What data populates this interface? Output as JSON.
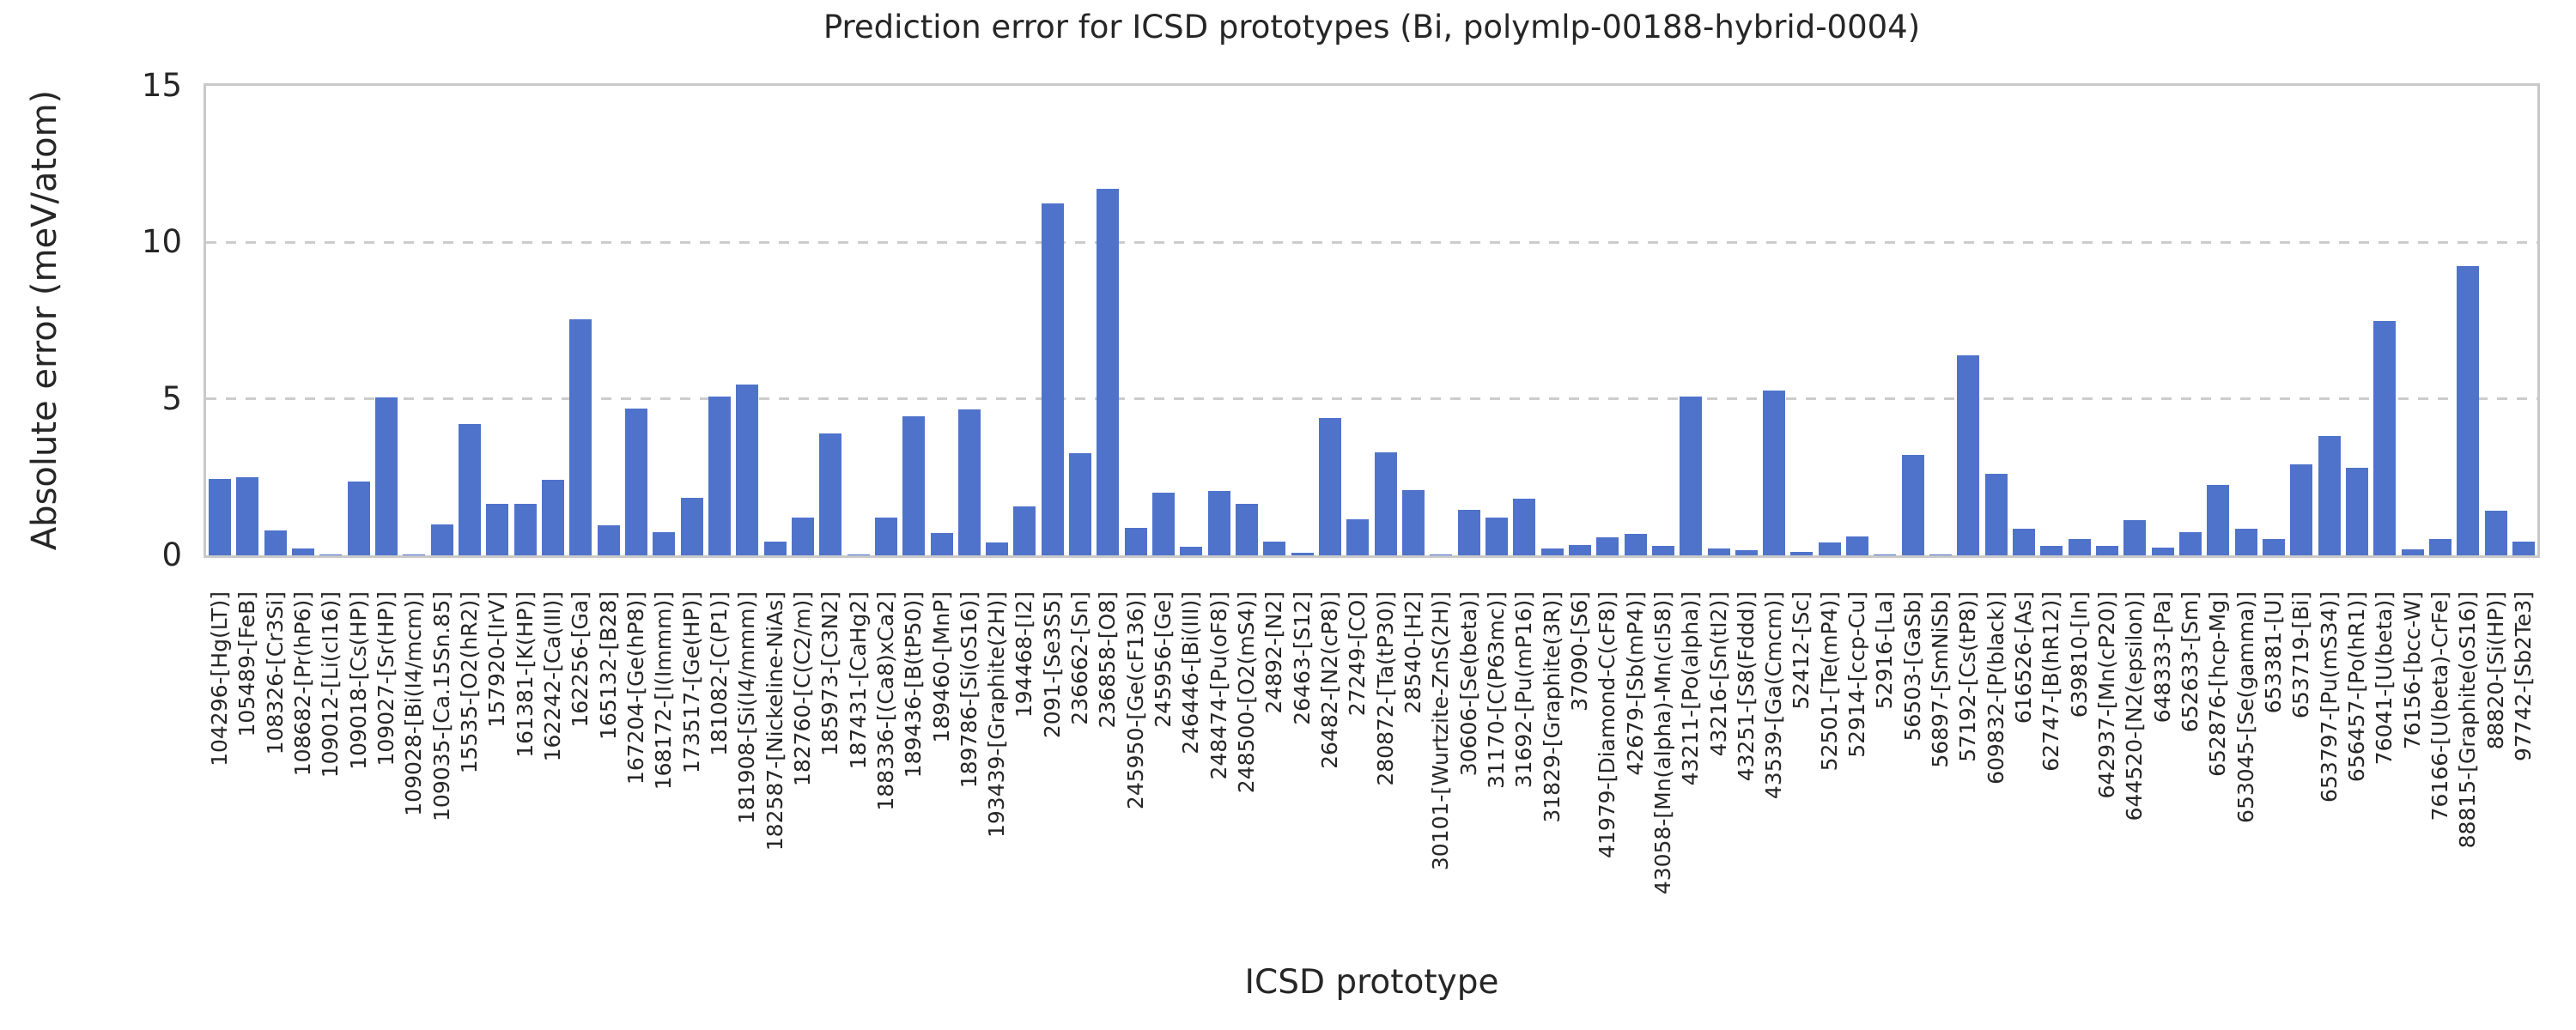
{
  "figure": {
    "title": "Prediction error for ICSD prototypes (Bi, polymlp-00188-hybrid-0004)",
    "xlabel": "ICSD prototype",
    "ylabel": "Absolute error (meV/atom)"
  },
  "colors": {
    "bar": "#4f73cb",
    "grid": "#cccccc",
    "spine": "#c9c9c9",
    "text": "#262626",
    "background": "#ffffff"
  },
  "chart_data": {
    "type": "bar",
    "title": "Prediction error for ICSD prototypes (Bi, polymlp-00188-hybrid-0004)",
    "xlabel": "ICSD prototype",
    "ylabel": "Absolute error (meV/atom)",
    "ylim": [
      0,
      15
    ],
    "yticks": [
      0,
      5,
      10,
      15
    ],
    "grid": "horizontal dashed gridlines at y=5 and y=10",
    "legend": "none",
    "bar_color": "#4f73cb",
    "categories": [
      "104296-[Hg(LT)]",
      "105489-[FeB]",
      "108326-[Cr3Si]",
      "108682-[Pr(hP6)]",
      "109012-[Li(cI16)]",
      "109018-[Cs(HP)]",
      "109027-[Sr(HP)]",
      "109028-[Bi(I4/mcm)]",
      "109035-[Ca.15Sn.85]",
      "15535-[O2(hR2)]",
      "157920-[IrV]",
      "161381-[K(HP)]",
      "162242-[Ca(III)]",
      "162256-[Ga]",
      "165132-[B28]",
      "167204-[Ge(hP8)]",
      "168172-[I(Immm)]",
      "173517-[Ge(HP)]",
      "181082-[C(P1)]",
      "181908-[Si(I4/mmm)]",
      "182587-[Nickeline-NiAs]",
      "182760-[C(C2/m)]",
      "185973-[C3N2]",
      "187431-[CaHg2]",
      "188336-[(Ca8)xCa2]",
      "189436-[B(tP50)]",
      "189460-[MnP]",
      "189786-[Si(oS16)]",
      "193439-[Graphite(2H)]",
      "194468-[I2]",
      "2091-[Se3S5]",
      "236662-[Sn]",
      "236858-[O8]",
      "245950-[Ge(cF136)]",
      "245956-[Ge]",
      "246446-[Bi(III)]",
      "248474-[Pu(oF8)]",
      "248500-[O2(mS4)]",
      "24892-[N2]",
      "26463-[S12]",
      "26482-[N2(cP8)]",
      "27249-[CO]",
      "280872-[Ta(tP30)]",
      "28540-[H2]",
      "30101-[Wurtzite-ZnS(2H)]",
      "30606-[Se(beta)]",
      "31170-[C(P63mc)]",
      "31692-[Pu(mP16)]",
      "31829-[Graphite(3R)]",
      "37090-[S6]",
      "41979-[Diamond-C(cF8)]",
      "42679-[Sb(mP4)]",
      "43058-[Mn(alpha)-Mn(cI58)]",
      "43211-[Po(alpha)]",
      "43216-[Sn(tI2)]",
      "43251-[S8(Fddd)]",
      "43539-[Ga(Cmcm)]",
      "52412-[Sc]",
      "52501-[Te(mP4)]",
      "52914-[ccp-Cu]",
      "52916-[La]",
      "56503-[GaSb]",
      "56897-[SmNiSb]",
      "57192-[Cs(tP8)]",
      "609832-[P(black)]",
      "616526-[As]",
      "62747-[B(hR12)]",
      "639810-[In]",
      "642937-[Mn(cP20)]",
      "644520-[N2(epsilon)]",
      "648333-[Pa]",
      "652633-[Sm]",
      "652876-[hcp-Mg]",
      "653045-[Se(gamma)]",
      "653381-[U]",
      "653719-[Bi]",
      "653797-[Pu(mS34)]",
      "656457-[Po(hR1)]",
      "76041-[U(beta)]",
      "76156-[bcc-W]",
      "76166-[U(beta)-CrFe]",
      "88815-[Graphite(oS16)]",
      "88820-[Si(HP)]",
      "97742-[Sb2Te3]"
    ],
    "values": [
      2.45,
      2.5,
      0.8,
      0.22,
      0.04,
      2.35,
      5.05,
      0.03,
      1.0,
      4.2,
      1.65,
      1.65,
      2.4,
      7.55,
      0.97,
      4.7,
      0.73,
      1.83,
      5.07,
      5.45,
      0.43,
      1.2,
      3.9,
      0.03,
      1.2,
      4.45,
      0.7,
      4.65,
      0.42,
      1.55,
      11.25,
      3.27,
      11.7,
      0.88,
      2.0,
      0.28,
      2.05,
      1.65,
      0.44,
      0.08,
      4.4,
      1.15,
      3.3,
      2.08,
      0.03,
      1.45,
      1.22,
      1.8,
      0.23,
      0.34,
      0.58,
      0.68,
      0.31,
      5.07,
      0.22,
      0.17,
      5.26,
      0.12,
      0.4,
      0.6,
      0.03,
      3.2,
      0.02,
      6.4,
      2.6,
      0.84,
      0.29,
      0.52,
      0.29,
      1.12,
      0.26,
      0.74,
      2.25,
      0.84,
      0.52,
      2.9,
      3.82,
      2.8,
      7.5,
      0.19,
      0.52,
      9.25,
      1.43,
      0.45
    ]
  }
}
